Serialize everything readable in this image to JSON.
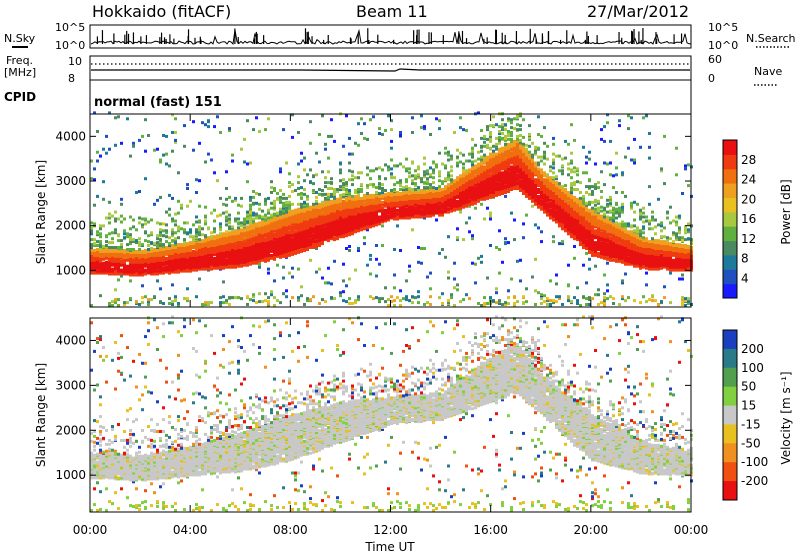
{
  "header": {
    "station": "Hokkaido (fitACF)",
    "beam": "Beam 11",
    "date": "27/Mar/2012"
  },
  "top_panels": {
    "nsky_label": "N.Sky",
    "nsearch_label": "N.Search",
    "nsky_ticks": [
      "10^5",
      "10^0"
    ],
    "freq_label_1": "Freq.",
    "freq_label_2": "[MHz]",
    "freq_ticks": [
      "10",
      "8"
    ],
    "nave_label": "Nave",
    "nave_ticks": [
      "60",
      "0"
    ],
    "cpid_label": "CPID",
    "cpid_value": "normal (fast) 151"
  },
  "chart_data": [
    {
      "type": "heatmap",
      "panel": "power",
      "ylabel": "Slant Range [km]",
      "xlabel": "Time UT",
      "x_ticks": [
        "00:00",
        "04:00",
        "08:00",
        "12:00",
        "16:00",
        "20:00",
        "00:00"
      ],
      "y_ticks": [
        1000,
        2000,
        3000,
        4000
      ],
      "ylim": [
        180,
        4500
      ],
      "colorbar": {
        "label": "Power [dB]",
        "ticks": [
          4,
          8,
          12,
          16,
          20,
          24,
          28
        ],
        "colors": [
          "#1a1aff",
          "#2050c0",
          "#1e7a9a",
          "#4a8a60",
          "#60b040",
          "#a8c840",
          "#e8c020",
          "#f0a020",
          "#f07010",
          "#f03a10",
          "#e81010"
        ]
      },
      "echo_band_km": [
        {
          "hour": 0,
          "lower": 900,
          "upper": 1450
        },
        {
          "hour": 2,
          "lower": 850,
          "upper": 1400
        },
        {
          "hour": 4,
          "lower": 950,
          "upper": 1600
        },
        {
          "hour": 6,
          "lower": 1050,
          "upper": 1900
        },
        {
          "hour": 8,
          "lower": 1300,
          "upper": 2300
        },
        {
          "hour": 10,
          "lower": 1700,
          "upper": 2600
        },
        {
          "hour": 12,
          "lower": 2100,
          "upper": 2700
        },
        {
          "hour": 14,
          "lower": 2200,
          "upper": 2800
        },
        {
          "hour": 16,
          "lower": 2600,
          "upper": 3600
        },
        {
          "hour": 17,
          "lower": 2800,
          "upper": 3900
        },
        {
          "hour": 18,
          "lower": 2300,
          "upper": 3200
        },
        {
          "hour": 20,
          "lower": 1300,
          "upper": 2300
        },
        {
          "hour": 22,
          "lower": 1000,
          "upper": 1700
        },
        {
          "hour": 24,
          "lower": 950,
          "upper": 1500
        }
      ]
    },
    {
      "type": "heatmap",
      "panel": "velocity",
      "ylabel": "Slant Range [km]",
      "xlabel": "Time UT",
      "x_ticks": [
        "00:00",
        "04:00",
        "08:00",
        "12:00",
        "16:00",
        "20:00",
        "00:00"
      ],
      "y_ticks": [
        1000,
        2000,
        3000,
        4000
      ],
      "ylim": [
        180,
        4500
      ],
      "colorbar": {
        "label": "Velocity [m s⁻¹]",
        "ticks": [
          200,
          100,
          50,
          15,
          -15,
          -50,
          -100,
          -200
        ],
        "colors": [
          "#1a40c0",
          "#2a7a8a",
          "#50a050",
          "#80d040",
          "#c8c8c8",
          "#e8c020",
          "#f09020",
          "#f05010",
          "#e81010"
        ]
      }
    }
  ]
}
